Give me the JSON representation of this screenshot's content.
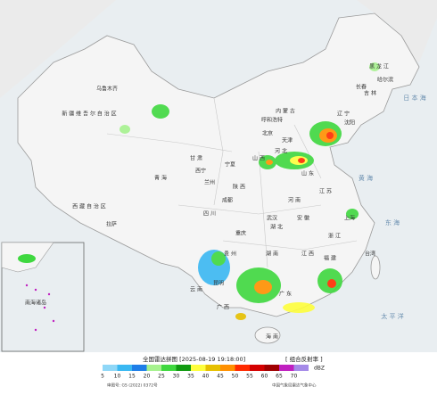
{
  "header": {
    "title": "全国雷达拼图 [2025-08-19 19:18:00]",
    "product": "[ 组合反射率 ]",
    "approval": "审图号: GS (2022) 0372号",
    "agency": "中国气象局雷达气象中心"
  },
  "legend": {
    "unit": "dBZ",
    "items": [
      {
        "value": 5,
        "color": "#8fd7f7"
      },
      {
        "value": 10,
        "color": "#3ab8f2"
      },
      {
        "value": 15,
        "color": "#1e7ee8"
      },
      {
        "value": 20,
        "color": "#a6f28e"
      },
      {
        "value": 25,
        "color": "#3fd83f"
      },
      {
        "value": 30,
        "color": "#109a10"
      },
      {
        "value": 35,
        "color": "#fefe3c"
      },
      {
        "value": 40,
        "color": "#e6c000"
      },
      {
        "value": 45,
        "color": "#ff9000"
      },
      {
        "value": 50,
        "color": "#ff2a00"
      },
      {
        "value": 55,
        "color": "#d40000"
      },
      {
        "value": 60,
        "color": "#a00000"
      },
      {
        "value": 65,
        "color": "#c020c0"
      },
      {
        "value": 70,
        "color": "#a58ae8"
      }
    ]
  },
  "labels": [
    {
      "text": "黑 龙 江"
    },
    {
      "text": "哈尔滨"
    },
    {
      "text": "吉 林"
    },
    {
      "text": "长春"
    },
    {
      "text": "辽 宁"
    },
    {
      "text": "沈阳"
    },
    {
      "text": "内 蒙 古"
    },
    {
      "text": "呼和浩特"
    },
    {
      "text": "新 疆 维 吾 尔 自 治 区"
    },
    {
      "text": "乌鲁木齐"
    },
    {
      "text": "西 藏 自 治 区"
    },
    {
      "text": "拉萨"
    },
    {
      "text": "青 海"
    },
    {
      "text": "西宁"
    },
    {
      "text": "甘 肃"
    },
    {
      "text": "兰州"
    },
    {
      "text": "宁夏"
    },
    {
      "text": "陕 西"
    },
    {
      "text": "山 西"
    },
    {
      "text": "河 北"
    },
    {
      "text": "北京"
    },
    {
      "text": "天津"
    },
    {
      "text": "山 东"
    },
    {
      "text": "河 南"
    },
    {
      "text": "四 川"
    },
    {
      "text": "成都"
    },
    {
      "text": "重庆"
    },
    {
      "text": "湖 北"
    },
    {
      "text": "武汉"
    },
    {
      "text": "安 徽"
    },
    {
      "text": "江 苏"
    },
    {
      "text": "上海"
    },
    {
      "text": "浙 江"
    },
    {
      "text": "湖 南"
    },
    {
      "text": "江 西"
    },
    {
      "text": "福 建"
    },
    {
      "text": "台湾"
    },
    {
      "text": "贵 州"
    },
    {
      "text": "云 南"
    },
    {
      "text": "昆明"
    },
    {
      "text": "广 西"
    },
    {
      "text": "广 东"
    },
    {
      "text": "海 南"
    },
    {
      "text": "日 本 海"
    },
    {
      "text": "黄 海"
    },
    {
      "text": "东 海"
    },
    {
      "text": "太 平 洋"
    },
    {
      "text": "南海诸岛"
    }
  ]
}
